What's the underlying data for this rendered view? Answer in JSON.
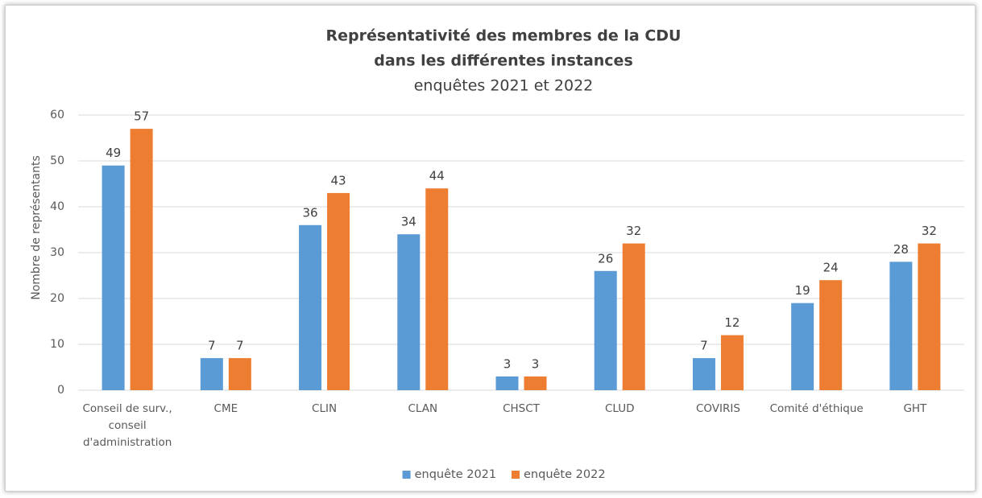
{
  "chart_data": {
    "type": "bar",
    "title": [
      "Représentativité des membres de la CDU",
      "dans les différentes instances"
    ],
    "subtitle": "enquêtes 2021 et 2022",
    "y_label": "Nombre de représentants",
    "categories": [
      "Conseil de surv., conseil d'administration",
      "CME",
      "CLIN",
      "CLAN",
      "CHSCT",
      "CLUD",
      "COVIRIS",
      "Comité d'éthique",
      "GHT"
    ],
    "series": [
      {
        "name": "enquête 2021",
        "color": "#5b9bd5",
        "values": [
          49,
          7,
          36,
          34,
          3,
          26,
          7,
          19,
          28
        ]
      },
      {
        "name": "enquête 2022",
        "color": "#ed7d31",
        "values": [
          57,
          7,
          43,
          44,
          3,
          32,
          12,
          24,
          32
        ]
      }
    ],
    "ylim": [
      0,
      60
    ],
    "yticks": [
      0,
      10,
      20,
      30,
      40,
      50,
      60
    ],
    "grid": true,
    "legend": "bottom"
  }
}
